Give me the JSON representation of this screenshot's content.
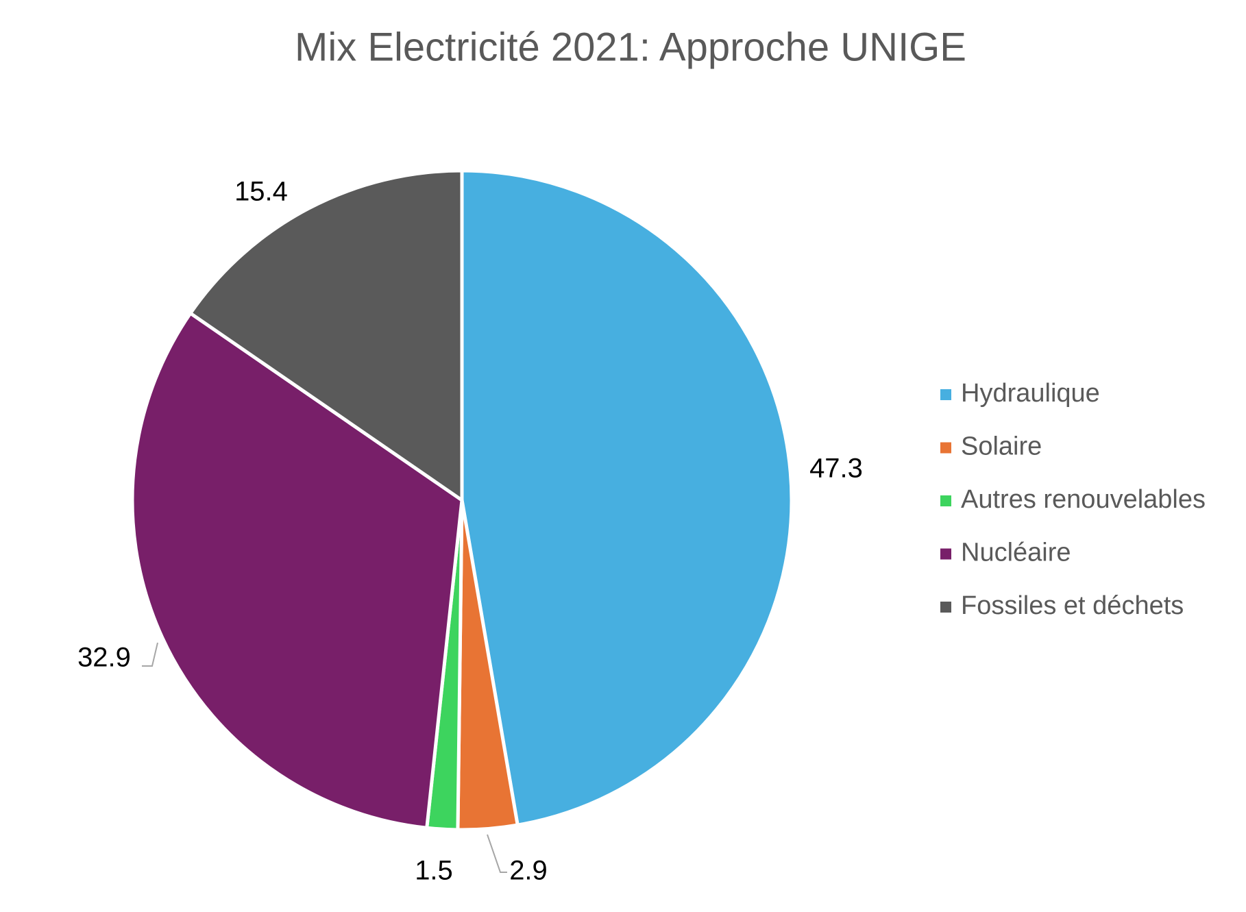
{
  "chart_data": {
    "type": "pie",
    "title": "Mix Electricité 2021: Approche UNIGE",
    "categories": [
      "Hydraulique",
      "Solaire",
      "Autres renouvelables",
      "Nucléaire",
      "Fossiles et déchets"
    ],
    "values": [
      47.3,
      2.9,
      1.5,
      32.9,
      15.4
    ],
    "colors": [
      "#47afe0",
      "#e87434",
      "#3dd45e",
      "#781f69",
      "#5a5a5a"
    ],
    "legend": "right"
  }
}
